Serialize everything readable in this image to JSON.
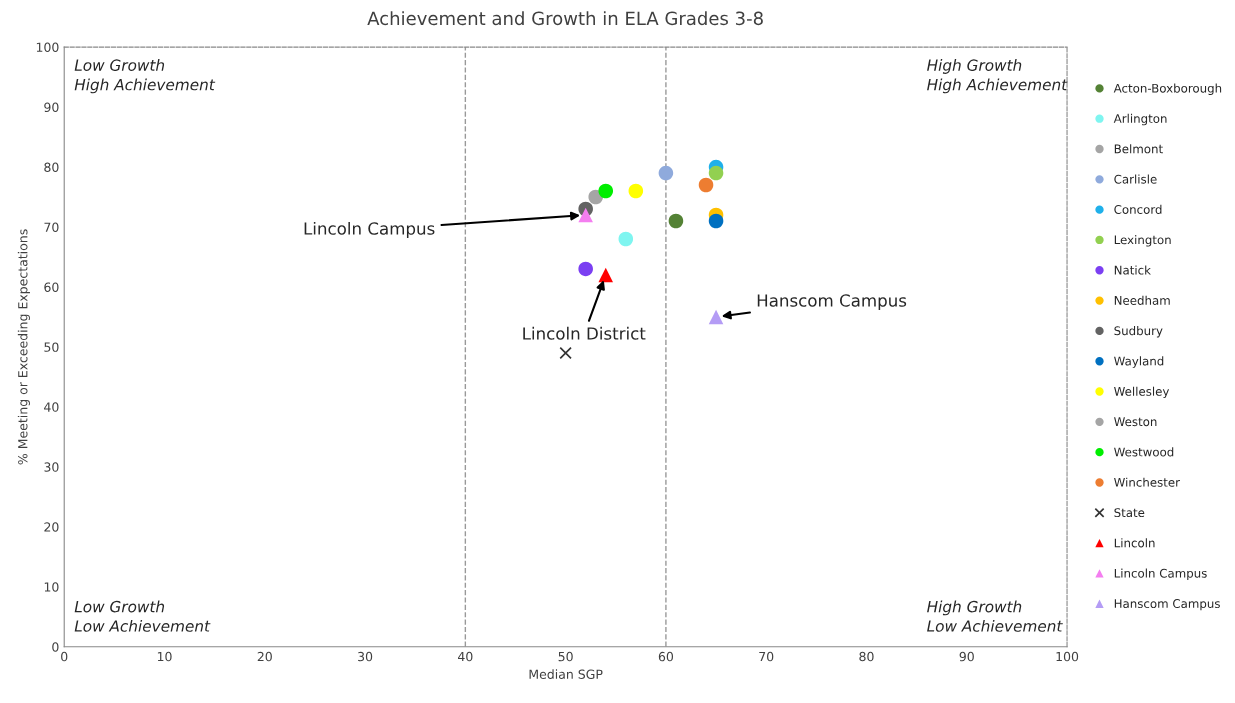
{
  "chart_data": {
    "type": "scatter",
    "title": "Achievement and Growth in ELA Grades 3-8",
    "xlabel": "Median SGP",
    "ylabel": "% Meeting or Exceeding Expectations",
    "xlim": [
      0,
      100
    ],
    "xticks": [
      0,
      10,
      20,
      30,
      40,
      50,
      60,
      70,
      80,
      90,
      100
    ],
    "ylim": [
      0,
      100
    ],
    "yticks": [
      0,
      10,
      20,
      30,
      40,
      50,
      60,
      70,
      80,
      90,
      100
    ],
    "grid": false,
    "legend": "right",
    "marker": "circle",
    "ref_lines": [
      {
        "axis": "x",
        "value": 40,
        "color": "#999999",
        "line_style": "dashed"
      },
      {
        "axis": "x",
        "value": 60,
        "color": "#999999",
        "line_style": "dashed"
      }
    ],
    "annotations": [
      "Low Growth\nHigh Achievement",
      "High Growth\nHigh Achievement",
      "Low Growth\nLow Achievement",
      "High Growth\nLow Achievement",
      {
        "text": "Lincoln Campus",
        "x": 52,
        "y": 72
      },
      {
        "text": "Lincoln District",
        "x": 54,
        "y": 62
      },
      {
        "text": "Hanscom Campus",
        "x": 65,
        "y": 55
      }
    ],
    "series": [
      {
        "name": "Acton-Boxborough",
        "color": "#548235",
        "x": [
          61
        ],
        "values": [
          71
        ]
      },
      {
        "name": "Arlington",
        "color": "#7ff5f0",
        "x": [
          56
        ],
        "values": [
          68
        ]
      },
      {
        "name": "Belmont",
        "color": "#a5a5a5",
        "x": [
          53
        ],
        "values": [
          75
        ]
      },
      {
        "name": "Carlisle",
        "color": "#8faadc",
        "x": [
          60
        ],
        "values": [
          79
        ]
      },
      {
        "name": "Concord",
        "color": "#1fb0ea",
        "x": [
          65
        ],
        "values": [
          80
        ]
      },
      {
        "name": "Lexington",
        "color": "#92d050",
        "x": [
          65
        ],
        "values": [
          79
        ]
      },
      {
        "name": "Natick",
        "color": "#7b3ff2",
        "x": [
          52
        ],
        "values": [
          63
        ]
      },
      {
        "name": "Needham",
        "color": "#ffc000",
        "x": [
          65
        ],
        "values": [
          72
        ]
      },
      {
        "name": "Sudbury",
        "color": "#636363",
        "x": [
          52
        ],
        "values": [
          73
        ]
      },
      {
        "name": "Wayland",
        "color": "#0070c0",
        "x": [
          65
        ],
        "values": [
          71
        ]
      },
      {
        "name": "Wellesley",
        "color": "#ffff00",
        "x": [
          57
        ],
        "values": [
          76
        ]
      },
      {
        "name": "Weston",
        "color": "#a5a5a5",
        "x": [
          null
        ],
        "values": [
          null
        ]
      },
      {
        "name": "Westwood",
        "color": "#00ee00",
        "x": [
          54
        ],
        "values": [
          76
        ]
      },
      {
        "name": "Winchester",
        "color": "#ed7d31",
        "x": [
          64
        ],
        "values": [
          77
        ]
      },
      {
        "name": "State",
        "color": "#333333",
        "marker": "cross",
        "x": [
          50
        ],
        "values": [
          49
        ]
      },
      {
        "name": "Lincoln",
        "color": "#ff0000",
        "marker": "triangle",
        "x": [
          54
        ],
        "values": [
          62
        ]
      },
      {
        "name": "Lincoln Campus",
        "color": "#f47ef0",
        "marker": "triangle",
        "x": [
          52
        ],
        "values": [
          72
        ]
      },
      {
        "name": "Hanscom Campus",
        "color": "#b49cf5",
        "marker": "triangle",
        "x": [
          65
        ],
        "values": [
          55
        ]
      }
    ]
  }
}
